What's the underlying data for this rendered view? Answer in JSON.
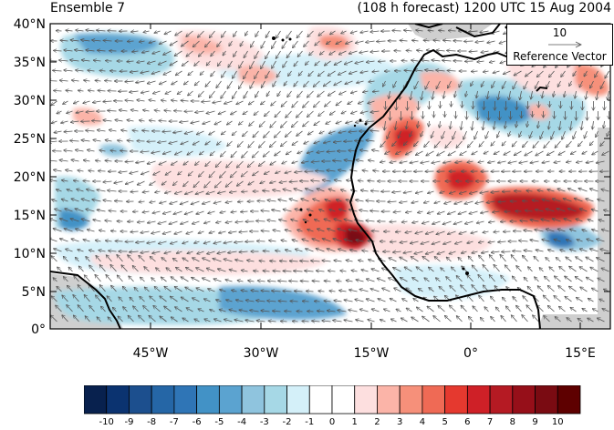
{
  "header": {
    "left_title": "Ensemble 7",
    "right_title": "(108 h forecast) 1200 UTC 15 Aug 2004"
  },
  "map": {
    "lat_labels": [
      "40°N",
      "35°N",
      "30°N",
      "25°N",
      "20°N",
      "15°N",
      "10°N",
      "5°N",
      "0°"
    ],
    "lon_labels": [
      "45°W",
      "30°W",
      "15°W",
      "0°",
      "15°E"
    ],
    "lon_range": [
      -57,
      19
    ],
    "lat_range": [
      0,
      40
    ]
  },
  "reference_vector": {
    "magnitude": "10",
    "label": "Reference Vector"
  },
  "colorbar": {
    "labels": [
      "-10",
      "-9",
      "-8",
      "-7",
      "-6",
      "-5",
      "-4",
      "-3",
      "-2",
      "-1",
      "0",
      "1",
      "2",
      "3",
      "4",
      "5",
      "6",
      "7",
      "8",
      "9",
      "10"
    ],
    "colors": [
      "#08214e",
      "#0b3370",
      "#1c4f8e",
      "#2566a6",
      "#2f75b6",
      "#4292c6",
      "#5ba3d0",
      "#8fc4de",
      "#a6d8e6",
      "#d4f0f9",
      "#ffffff",
      "#ffffff",
      "#fddfdf",
      "#fbb4a8",
      "#f6907a",
      "#ef6a55",
      "#e5392f",
      "#cf2027",
      "#b51a23",
      "#960f19",
      "#7a0b12",
      "#5e0000"
    ]
  },
  "colors": {
    "coast": "#000000",
    "land_missing": "#c8c8c8"
  }
}
